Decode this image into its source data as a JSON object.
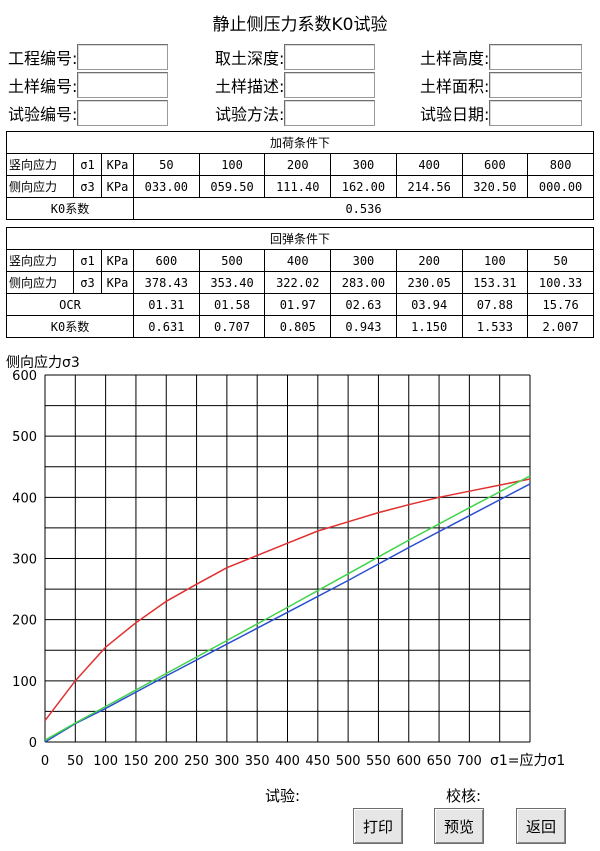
{
  "title": "静止侧压力系数K0试验",
  "form": {
    "row1": [
      "工程编号:",
      "取土深度:",
      "土样高度:"
    ],
    "row2": [
      "土样编号:",
      "土样描述:",
      "土样面积:"
    ],
    "row3": [
      "试验编号:",
      "试验方法:",
      "试验日期:"
    ],
    "values": [
      "",
      "",
      "",
      "",
      "",
      "",
      "",
      "",
      ""
    ]
  },
  "loading": {
    "caption": "加荷条件下",
    "sigma1_label": "竖向应力",
    "sigma1_sym": "σ1",
    "sigma3_label": "侧向应力",
    "sigma3_sym": "σ3",
    "unit": "KPa",
    "sigma1": [
      "50",
      "100",
      "200",
      "300",
      "400",
      "600",
      "800"
    ],
    "sigma3": [
      "033.00",
      "059.50",
      "111.40",
      "162.00",
      "214.56",
      "320.50",
      "000.00"
    ],
    "k0_label": "K0系数",
    "k0_value": "0.536"
  },
  "unloading": {
    "caption": "回弹条件下",
    "sigma1_label": "竖向应力",
    "sigma1_sym": "σ1",
    "sigma3_label": "侧向应力",
    "sigma3_sym": "σ3",
    "unit": "KPa",
    "sigma1": [
      "600",
      "500",
      "400",
      "300",
      "200",
      "100",
      "50"
    ],
    "sigma3": [
      "378.43",
      "353.40",
      "322.02",
      "283.00",
      "230.05",
      "153.31",
      "100.33"
    ],
    "ocr_label": "OCR",
    "ocr": [
      "01.31",
      "01.58",
      "01.97",
      "02.63",
      "03.94",
      "07.88",
      "15.76"
    ],
    "k0_label": "K0系数",
    "k0": [
      "0.631",
      "0.707",
      "0.805",
      "0.943",
      "1.150",
      "1.533",
      "2.007"
    ]
  },
  "chart_data": {
    "type": "line",
    "ylabel": "侧向应力σ3",
    "xlabel": "σ1=应力σ1",
    "xlim": [
      0,
      800
    ],
    "ylim": [
      0,
      600
    ],
    "xticks": [
      "0",
      "50",
      "100",
      "150",
      "200",
      "250",
      "300",
      "350",
      "400",
      "450",
      "500",
      "550",
      "600",
      "650",
      "700"
    ],
    "yticks": [
      "0",
      "100",
      "200",
      "300",
      "400",
      "500",
      "600"
    ],
    "grid": true,
    "series": [
      {
        "color": "#e03030",
        "x": [
          0,
          50,
          100,
          150,
          200,
          250,
          300,
          350,
          400,
          450,
          500,
          550,
          600,
          650,
          700,
          750,
          800
        ],
        "y": [
          35,
          100,
          155,
          195,
          230,
          258,
          285,
          305,
          325,
          345,
          360,
          375,
          388,
          400,
          410,
          420,
          430
        ]
      },
      {
        "color": "#2a4fd0",
        "x": [
          0,
          50,
          100,
          200,
          300,
          400,
          500,
          600,
          700,
          800
        ],
        "y": [
          0,
          30,
          55,
          108,
          160,
          212,
          264,
          318,
          370,
          422
        ]
      },
      {
        "color": "#3fd44a",
        "x": [
          0,
          50,
          100,
          200,
          300,
          400,
          500,
          600,
          700,
          800
        ],
        "y": [
          3,
          31,
          58,
          112,
          166,
          220,
          275,
          330,
          383,
          435
        ]
      }
    ]
  },
  "footer": {
    "test_label": "试验:",
    "check_label": "校核:",
    "print_label": "打印",
    "preview_label": "预览",
    "back_label": "返回"
  }
}
